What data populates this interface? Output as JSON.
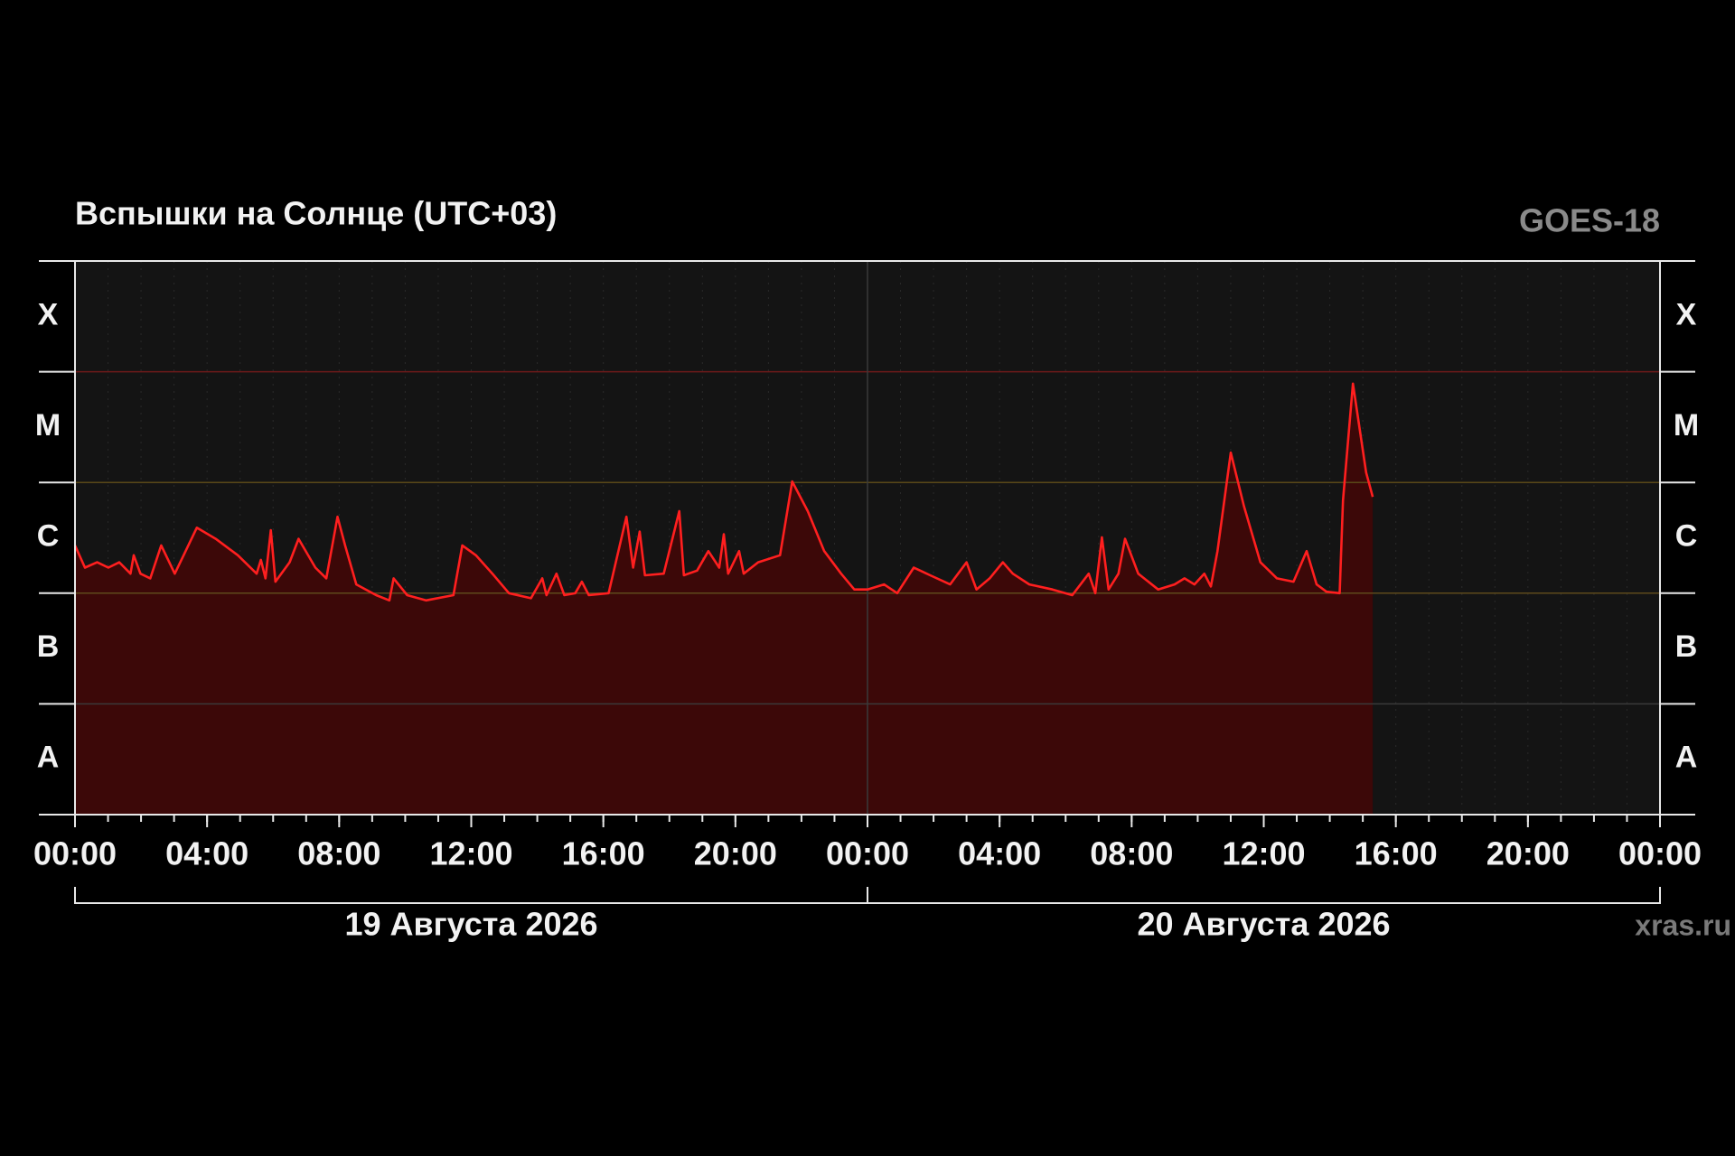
{
  "chart_data": {
    "type": "area-line",
    "title": "Вспышки на Солнце (UTC+03)",
    "station": "GOES-18",
    "source": "xras.ru",
    "log_scale": true,
    "xlim": [
      0,
      48
    ],
    "xticks": [
      {
        "value": 0,
        "label": "00:00"
      },
      {
        "value": 4,
        "label": "04:00"
      },
      {
        "value": 8,
        "label": "08:00"
      },
      {
        "value": 12,
        "label": "12:00"
      },
      {
        "value": 16,
        "label": "16:00"
      },
      {
        "value": 20,
        "label": "20:00"
      },
      {
        "value": 24,
        "label": "00:00"
      },
      {
        "value": 28,
        "label": "04:00"
      },
      {
        "value": 32,
        "label": "08:00"
      },
      {
        "value": 36,
        "label": "12:00"
      },
      {
        "value": 40,
        "label": "16:00"
      },
      {
        "value": 44,
        "label": "20:00"
      },
      {
        "value": 48,
        "label": "00:00"
      }
    ],
    "minor_tick_step": 1,
    "date_labels": [
      {
        "label": "19 Августа 2026",
        "from": 0,
        "to": 24
      },
      {
        "label": "20 Августа 2026",
        "from": 24,
        "to": 48
      }
    ],
    "ylim": [
      1e-08,
      0.001
    ],
    "bands": [
      {
        "label": "A",
        "from": 1e-08,
        "to": 1e-07
      },
      {
        "label": "B",
        "from": 1e-07,
        "to": 1e-06,
        "boundary_color": "#3a3a3a"
      },
      {
        "label": "C",
        "from": 1e-06,
        "to": 1e-05,
        "boundary_color": "#5e4a1c"
      },
      {
        "label": "M",
        "from": 1e-05,
        "to": 0.0001,
        "boundary_color": "#5a4818"
      },
      {
        "label": "X",
        "from": 0.0001,
        "to": 0.001,
        "boundary_color": "#6e1a1a"
      }
    ],
    "line_color": "#ff1f1f",
    "fill_color": "#3c0808",
    "x": [
      0,
      0.3,
      0.67,
      1.01,
      1.34,
      1.68,
      1.78,
      1.98,
      2.28,
      2.61,
      3.02,
      3.29,
      3.69,
      4.26,
      4.93,
      5.5,
      5.63,
      5.77,
      5.93,
      6.07,
      6.5,
      6.77,
      7.28,
      7.61,
      7.95,
      8.18,
      8.52,
      9.12,
      9.52,
      9.65,
      10.06,
      10.63,
      11.46,
      11.73,
      12.14,
      12.64,
      13.14,
      13.81,
      14.15,
      14.28,
      14.58,
      14.82,
      15.15,
      15.35,
      15.56,
      16.16,
      16.7,
      16.9,
      17.1,
      17.26,
      17.83,
      18.3,
      18.44,
      18.84,
      19.18,
      19.51,
      19.65,
      19.78,
      20.11,
      20.25,
      20.69,
      21.35,
      21.72,
      22.19,
      22.69,
      23.2,
      23.6,
      24.0,
      24.5,
      24.9,
      25.4,
      25.9,
      26.5,
      27.0,
      27.3,
      27.7,
      28.1,
      28.4,
      28.9,
      29.6,
      30.2,
      30.7,
      30.9,
      31.1,
      31.3,
      31.6,
      31.8,
      32.2,
      32.8,
      33.3,
      33.6,
      33.9,
      34.2,
      34.4,
      34.6,
      35.0,
      35.4,
      35.9,
      36.4,
      36.9,
      37.3,
      37.6,
      37.9,
      38.3,
      38.4,
      38.7,
      38.9,
      39.1,
      39.3
    ],
    "values": [
      2.7e-06,
      1.7e-06,
      1.9e-06,
      1.7e-06,
      1.9e-06,
      1.5e-06,
      2.2e-06,
      1.5e-06,
      1.36e-06,
      2.7e-06,
      1.5e-06,
      2.2e-06,
      3.9e-06,
      3.1e-06,
      2.2e-06,
      1.5e-06,
      2e-06,
      1.36e-06,
      3.7e-06,
      1.27e-06,
      1.9e-06,
      3.1e-06,
      1.7e-06,
      1.36e-06,
      4.9e-06,
      2.7e-06,
      1.2e-06,
      9.6e-07,
      8.6e-07,
      1.36e-06,
      9.6e-07,
      8.6e-07,
      9.6e-07,
      2.7e-06,
      2.2e-06,
      1.5e-06,
      1e-06,
      9e-07,
      1.36e-06,
      9.6e-07,
      1.5e-06,
      9.6e-07,
      1e-06,
      1.27e-06,
      9.6e-07,
      1e-06,
      4.9e-06,
      1.7e-06,
      3.6e-06,
      1.45e-06,
      1.5e-06,
      5.5e-06,
      1.45e-06,
      1.6e-06,
      2.4e-06,
      1.7e-06,
      3.4e-06,
      1.5e-06,
      2.4e-06,
      1.5e-06,
      1.9e-06,
      2.2e-06,
      1.02e-05,
      5.5e-06,
      2.4e-06,
      1.5e-06,
      1.08e-06,
      1.08e-06,
      1.2e-06,
      1e-06,
      1.7e-06,
      1.45e-06,
      1.2e-06,
      1.9e-06,
      1.08e-06,
      1.36e-06,
      1.9e-06,
      1.5e-06,
      1.2e-06,
      1.08e-06,
      9.6e-07,
      1.5e-06,
      1e-06,
      3.2e-06,
      1.08e-06,
      1.5e-06,
      3.1e-06,
      1.5e-06,
      1.08e-06,
      1.2e-06,
      1.36e-06,
      1.2e-06,
      1.5e-06,
      1.15e-06,
      2.4e-06,
      1.86e-05,
      6.1e-06,
      1.9e-06,
      1.36e-06,
      1.27e-06,
      2.4e-06,
      1.2e-06,
      1.03e-06,
      1e-06,
      6.9e-06,
      7.8e-05,
      3.1e-05,
      1.23e-05,
      7.4e-06
    ]
  }
}
